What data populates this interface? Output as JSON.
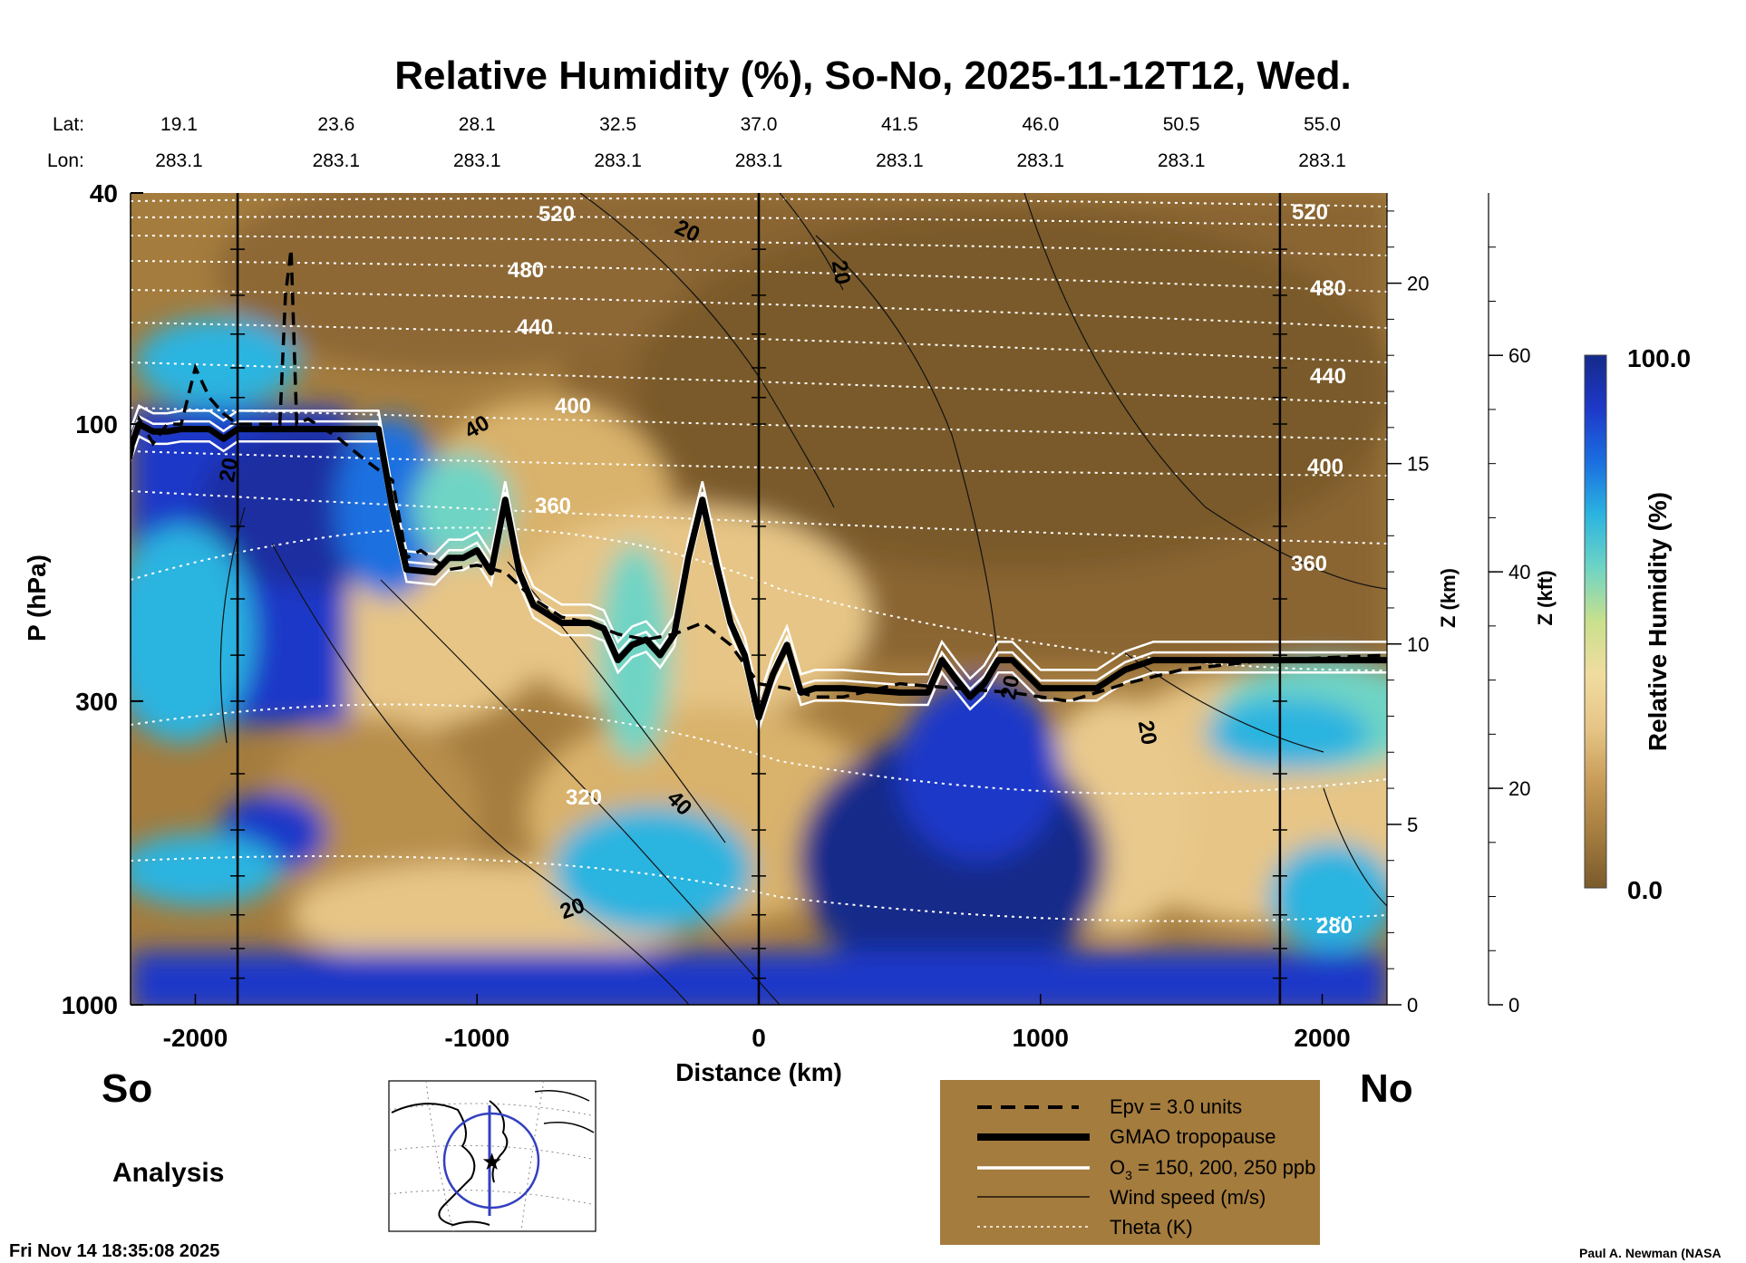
{
  "chart_data": {
    "type": "heatmap",
    "title": "Relative Humidity (%), So-No, 2025-11-12T12, Wed.",
    "xlabel": "Distance (km)",
    "ylabel": "P (hPa)",
    "right_axis_km_label": "Z (km)",
    "right_axis_kft_label": "Z (kft)",
    "colorbar_label": "Relative Humidity (%)",
    "colorbar_max_label": "100.0",
    "colorbar_min_label": "0.0",
    "clim": [
      0,
      100
    ],
    "colormap": [
      "#7a5a2c",
      "#a47c3e",
      "#c89c58",
      "#e6c586",
      "#f1dca0",
      "#c9e08c",
      "#6fd4c4",
      "#2bb4e0",
      "#1a6fe0",
      "#1e38c8",
      "#152a8a"
    ],
    "xlim": [
      -2230,
      2230
    ],
    "ylim": [
      1000,
      40
    ],
    "yscale": "log",
    "x_ticks": [
      "-2000",
      "-1000",
      "0",
      "1000",
      "2000"
    ],
    "x_tick_values": [
      -2000,
      -1000,
      0,
      1000,
      2000
    ],
    "p_ticks": [
      "40",
      "100",
      "300",
      "1000"
    ],
    "p_tick_values": [
      40,
      100,
      300,
      1000
    ],
    "z_km_ticks": [
      "0",
      "5",
      "10",
      "15",
      "20"
    ],
    "z_km_values": [
      0,
      5,
      10,
      15,
      20
    ],
    "z_kft_ticks": [
      "0",
      "20",
      "40",
      "60"
    ],
    "z_kft_values": [
      0,
      20,
      40,
      60
    ],
    "lat_label": "Lat:",
    "lon_label": "Lon:",
    "lat": [
      "19.1",
      "23.6",
      "28.1",
      "32.5",
      "37.0",
      "41.5",
      "46.0",
      "50.5",
      "55.0"
    ],
    "lon": [
      "283.1",
      "283.1",
      "283.1",
      "283.1",
      "283.1",
      "283.1",
      "283.1",
      "283.1",
      "283.1"
    ],
    "latlon_x": [
      -2000,
      -1500,
      -1000,
      -500,
      0,
      500,
      1000,
      1500,
      2000
    ],
    "vertical_lines_x": [
      -1850,
      0,
      1850
    ],
    "theta_labels": [
      "520",
      "480",
      "440",
      "400",
      "360",
      "320",
      "280"
    ],
    "wind_labels": [
      "20",
      "40"
    ],
    "tropopause": {
      "x": [
        -2230,
        -2200,
        -2150,
        -2100,
        -2050,
        -1950,
        -1900,
        -1850,
        -1700,
        -1450,
        -1350,
        -1300,
        -1250,
        -1150,
        -1100,
        -1050,
        -1000,
        -950,
        -900,
        -850,
        -800,
        -700,
        -600,
        -550,
        -500,
        -450,
        -400,
        -350,
        -300,
        -250,
        -200,
        -150,
        -100,
        -50,
        0,
        50,
        100,
        150,
        200,
        300,
        500,
        600,
        650,
        700,
        750,
        800,
        850,
        900,
        1000,
        1100,
        1200,
        1300,
        1400,
        1800,
        2230
      ],
      "p": [
        110,
        100,
        103,
        103,
        102,
        102,
        106,
        102,
        102,
        102,
        102,
        140,
        178,
        180,
        170,
        170,
        165,
        180,
        135,
        180,
        205,
        220,
        220,
        225,
        255,
        240,
        235,
        250,
        230,
        170,
        135,
        175,
        220,
        250,
        320,
        270,
        240,
        290,
        285,
        285,
        290,
        290,
        255,
        275,
        295,
        280,
        255,
        255,
        285,
        285,
        285,
        265,
        255,
        255,
        255
      ]
    },
    "epv_contour": {
      "x": [
        -2230,
        -2200,
        -2150,
        -2100,
        -2050,
        -2000,
        -1950,
        -1900,
        -1850,
        -1800,
        -1750,
        -1700,
        -1680,
        -1660,
        -1640,
        -1600,
        -1500,
        -1400,
        -1300,
        -1250,
        -1200,
        -1100,
        -1000,
        -900,
        -800,
        -700,
        -600,
        -500,
        -400,
        -300,
        -200,
        -100,
        0,
        100,
        200,
        300,
        500,
        700,
        900,
        1100,
        1200,
        1300,
        1500,
        1800,
        2230
      ],
      "p": [
        115,
        98,
        108,
        100,
        100,
        80,
        90,
        96,
        100,
        100,
        100,
        100,
        60,
        50,
        100,
        98,
        105,
        115,
        125,
        170,
        165,
        178,
        175,
        180,
        200,
        215,
        220,
        230,
        235,
        230,
        220,
        240,
        280,
        285,
        295,
        295,
        280,
        285,
        290,
        300,
        290,
        280,
        265,
        255,
        250
      ]
    },
    "legend": {
      "epv": "Epv = 3.0 units",
      "tropopause": "GMAO tropopause",
      "ozone_prefix": "O",
      "ozone_sub": "3",
      "ozone_suffix": " = 150, 200, 250 ppb",
      "wind": "Wind speed (m/s)",
      "theta": "Theta (K)"
    }
  },
  "labels": {
    "south": "So",
    "north": "No",
    "analysis": "Analysis",
    "timestamp": "Fri Nov 14 18:35:08 2025",
    "credit": "Paul A. Newman (NASA"
  },
  "colors": {
    "legend_bg": "#a47c3e",
    "map_circle": "#3440c0",
    "map_track": "#3440c0",
    "map_star": "#29a8e0"
  }
}
